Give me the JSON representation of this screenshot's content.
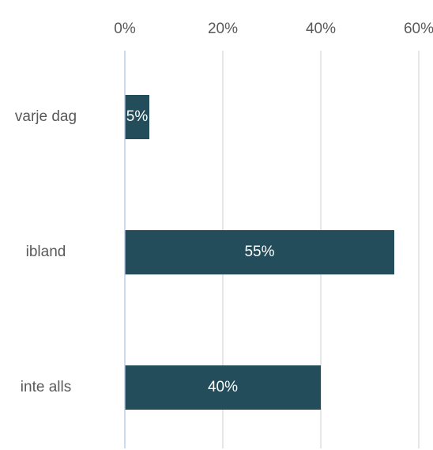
{
  "chart_data": {
    "type": "bar",
    "orientation": "horizontal",
    "categories": [
      "varje dag",
      "ibland",
      "inte alls"
    ],
    "values": [
      5,
      55,
      40
    ],
    "data_labels": [
      "5%",
      "55%",
      "40%"
    ],
    "x_ticks": [
      0,
      20,
      40,
      60
    ],
    "x_tick_labels": [
      "0%",
      "20%",
      "40%",
      "60%"
    ],
    "xlim": [
      0,
      60
    ],
    "x_axis_position": "top",
    "grid": true,
    "legend": "none",
    "bar_color": "#234d5a",
    "grid_color": "#d9d9d9",
    "axis_color": "#b4c7e7",
    "title": "",
    "xlabel": "",
    "ylabel": ""
  }
}
